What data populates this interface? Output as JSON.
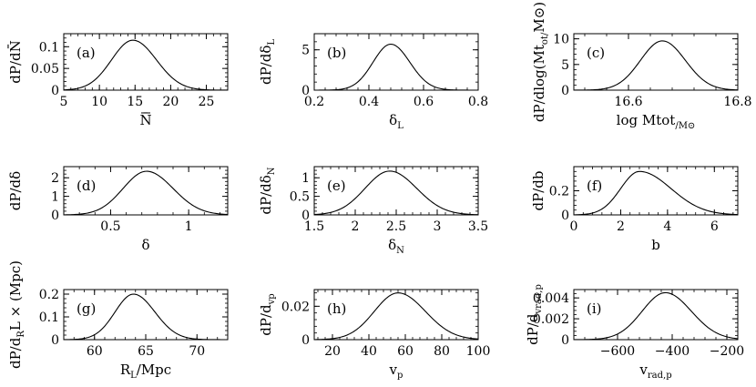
{
  "chart_data": [
    {
      "id": "a",
      "type": "line",
      "tag": "(a)",
      "xlabel": "N̄",
      "ylabel": "dP/dN̄",
      "xlim": [
        5,
        28
      ],
      "ylim": [
        0,
        0.13
      ],
      "xticks": [
        5,
        10,
        15,
        20,
        25
      ],
      "xtick_labels": [
        "5",
        "10",
        "15",
        "20",
        "25"
      ],
      "yticks": [
        0,
        0.05,
        0.1
      ],
      "ytick_labels": [
        "0",
        "0.05",
        "0.1"
      ],
      "peak": {
        "x": 14.7,
        "y": 0.115
      },
      "width": {
        "left": 3.0,
        "right": 3.3
      }
    },
    {
      "id": "b",
      "type": "line",
      "tag": "(b)",
      "xlabel": "δL",
      "ylabel": "dP/dδL",
      "xlim": [
        0.2,
        0.8
      ],
      "ylim": [
        0,
        7
      ],
      "xticks": [
        0.2,
        0.4,
        0.6,
        0.8
      ],
      "xtick_labels": [
        "0.2",
        "0.4",
        "0.6",
        "0.8"
      ],
      "yticks": [
        0,
        5
      ],
      "ytick_labels": [
        "0",
        "5"
      ],
      "peak": {
        "x": 0.48,
        "y": 5.7
      },
      "width": {
        "left": 0.065,
        "right": 0.07
      }
    },
    {
      "id": "c",
      "type": "line",
      "tag": "(c)",
      "xlabel": "log Mtot/M⊙",
      "ylabel": "dP/dlog(Mtot/M⊙)",
      "xlim": [
        16.5,
        16.8
      ],
      "ylim": [
        0,
        11
      ],
      "xticks": [
        16.6,
        16.8
      ],
      "xtick_labels": [
        "16.6",
        "16.8"
      ],
      "yticks": [
        0,
        5,
        10
      ],
      "ytick_labels": [
        "0",
        "5",
        "10"
      ],
      "peak": {
        "x": 16.662,
        "y": 9.6
      },
      "width": {
        "left": 0.04,
        "right": 0.042
      }
    },
    {
      "id": "d",
      "type": "line",
      "tag": "(d)",
      "xlabel": "δ",
      "ylabel": "dP/dδ",
      "xlim": [
        0.2,
        1.25
      ],
      "ylim": [
        0,
        2.6
      ],
      "xticks": [
        0.5,
        1
      ],
      "xtick_labels": [
        "0.5",
        "1"
      ],
      "yticks": [
        0,
        1,
        2
      ],
      "ytick_labels": [
        "0",
        "1",
        "2"
      ],
      "peak": {
        "x": 0.73,
        "y": 2.35
      },
      "width": {
        "left": 0.15,
        "right": 0.17
      }
    },
    {
      "id": "e",
      "type": "line",
      "tag": "(e)",
      "xlabel": "δN",
      "ylabel": "dP/dδN",
      "xlim": [
        1.5,
        3.5
      ],
      "ylim": [
        0,
        1.3
      ],
      "xticks": [
        1.5,
        2,
        2.5,
        3,
        3.5
      ],
      "xtick_labels": [
        "1.5",
        "2",
        "2.5",
        "3",
        "3.5"
      ],
      "yticks": [
        0,
        0.5,
        1
      ],
      "ytick_labels": [
        "0",
        "0.5",
        "1"
      ],
      "peak": {
        "x": 2.42,
        "y": 1.18
      },
      "width": {
        "left": 0.3,
        "right": 0.33
      }
    },
    {
      "id": "f",
      "type": "line",
      "tag": "(f)",
      "xlabel": "b",
      "ylabel": "dP/db",
      "xlim": [
        0,
        7
      ],
      "ylim": [
        0,
        0.4
      ],
      "xticks": [
        0,
        2,
        4,
        6
      ],
      "xtick_labels": [
        "0",
        "2",
        "4",
        "6"
      ],
      "yticks": [
        0,
        0.2
      ],
      "ytick_labels": [
        "0",
        "0.2"
      ],
      "peak": {
        "x": 2.8,
        "y": 0.36
      },
      "width": {
        "left": 0.8,
        "right": 1.35
      }
    },
    {
      "id": "g",
      "type": "line",
      "tag": "(g)",
      "xlabel": "RL/Mpc",
      "ylabel": "dP/dRL × (Mpc)",
      "xlim": [
        57,
        73
      ],
      "ylim": [
        0,
        0.22
      ],
      "xticks": [
        60,
        65,
        70
      ],
      "xtick_labels": [
        "60",
        "65",
        "70"
      ],
      "yticks": [
        0,
        0.1,
        0.2
      ],
      "ytick_labels": [
        "0",
        "0.1",
        "0.2"
      ],
      "peak": {
        "x": 63.8,
        "y": 0.2
      },
      "width": {
        "left": 1.8,
        "right": 2.1
      }
    },
    {
      "id": "h",
      "type": "line",
      "tag": "(h)",
      "xlabel": "vp",
      "ylabel": "dP/dvp",
      "xlim": [
        10,
        100
      ],
      "ylim": [
        0,
        0.03
      ],
      "xticks": [
        20,
        40,
        60,
        80,
        100
      ],
      "xtick_labels": [
        "20",
        "40",
        "60",
        "80",
        "100"
      ],
      "yticks": [
        0,
        0.02
      ],
      "ytick_labels": [
        "0",
        "0.02"
      ],
      "peak": {
        "x": 56,
        "y": 0.028
      },
      "width": {
        "left": 13,
        "right": 15
      }
    },
    {
      "id": "i",
      "type": "line",
      "tag": "(i)",
      "xlabel": "vrad,p",
      "ylabel": "dP/dvrad,p",
      "xlim": [
        -760,
        -160
      ],
      "ylim": [
        0,
        0.0048
      ],
      "xticks": [
        -600,
        -400,
        -200
      ],
      "xtick_labels": [
        "−600",
        "−400",
        "−200"
      ],
      "yticks": [
        0,
        0.002,
        0.004
      ],
      "ytick_labels": [
        "0",
        "0.002",
        "0.004"
      ],
      "peak": {
        "x": -425,
        "y": 0.0045
      },
      "width": {
        "left": 85,
        "right": 95
      }
    }
  ]
}
